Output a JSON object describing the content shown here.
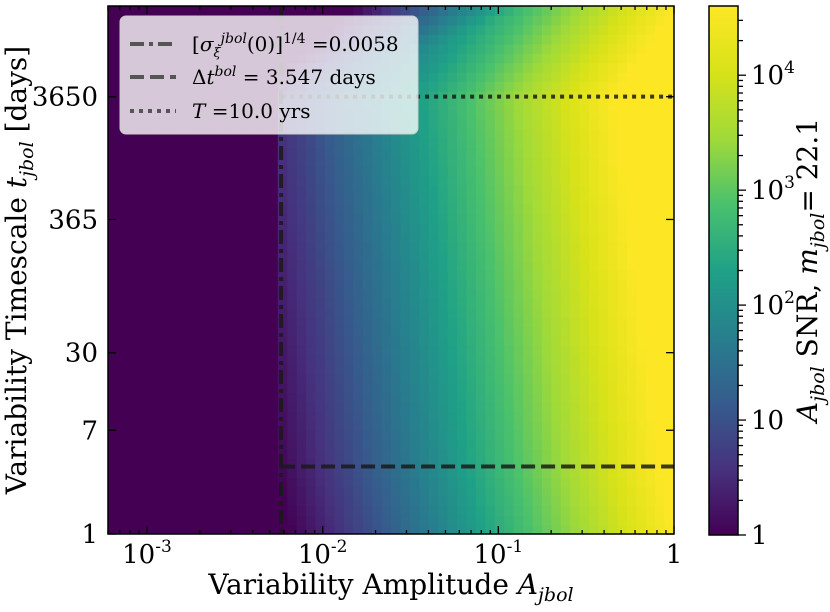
{
  "chart_data": {
    "type": "heatmap",
    "xlabel": "Variability Amplitude A_jbol",
    "ylabel": "Variability Timescale t_jbol [days]",
    "colorbar_label": "A_jbol SNR, m_jbol= 22.1",
    "x_scale": "log",
    "y_scale": "log",
    "xlim": [
      0.0006,
      1
    ],
    "ylim": [
      1,
      20000
    ],
    "x_ticks": [
      {
        "value": 0.001,
        "label": "10^-3"
      },
      {
        "value": 0.01,
        "label": "10^-2"
      },
      {
        "value": 0.1,
        "label": "10^-1"
      },
      {
        "value": 1,
        "label": "1"
      }
    ],
    "y_ticks": [
      {
        "value": 1,
        "label": "1"
      },
      {
        "value": 7,
        "label": "7"
      },
      {
        "value": 30,
        "label": "30"
      },
      {
        "value": 365,
        "label": "365"
      },
      {
        "value": 3650,
        "label": "3650"
      }
    ],
    "colorbar": {
      "scale": "log",
      "range": [
        1,
        40000
      ],
      "colormap": "viridis",
      "ticks": [
        {
          "value": 1,
          "label": "1"
        },
        {
          "value": 10,
          "label": "10"
        },
        {
          "value": 100,
          "label": "10^2"
        },
        {
          "value": 1000,
          "label": "10^3"
        },
        {
          "value": 10000,
          "label": "10^4"
        }
      ]
    },
    "reference_lines": [
      {
        "orientation": "vertical",
        "style": "dashdot",
        "value": 0.0058,
        "label": "[σ_ξ^jbol(0)]^1/4 =0.0058"
      },
      {
        "orientation": "horizontal",
        "style": "dashed",
        "value": 3.547,
        "label": "Δt^bol = 3.547 days"
      },
      {
        "orientation": "horizontal",
        "style": "dotted",
        "value": 3652.5,
        "label": "T =10.0 yrs"
      }
    ],
    "legend": {
      "position": "top-left"
    }
  }
}
